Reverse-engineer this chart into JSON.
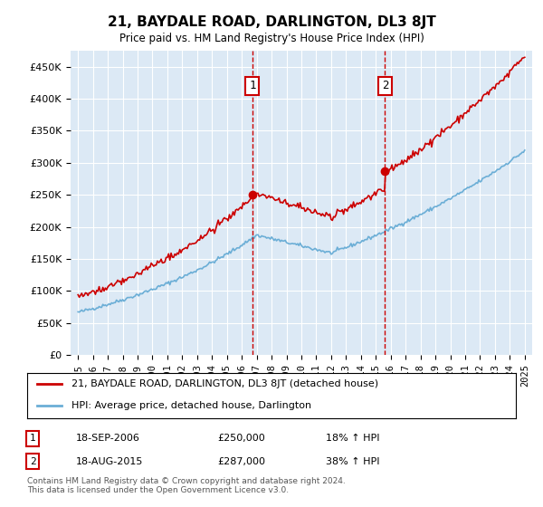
{
  "title": "21, BAYDALE ROAD, DARLINGTON, DL3 8JT",
  "subtitle": "Price paid vs. HM Land Registry's House Price Index (HPI)",
  "background_color": "#dce9f5",
  "plot_bg_color": "#dce9f5",
  "ylabel_ticks": [
    "£0",
    "£50K",
    "£100K",
    "£150K",
    "£200K",
    "£250K",
    "£300K",
    "£350K",
    "£400K",
    "£450K"
  ],
  "ytick_values": [
    0,
    50000,
    100000,
    150000,
    200000,
    250000,
    300000,
    350000,
    400000,
    450000
  ],
  "ylim": [
    0,
    475000
  ],
  "xlim_start": 1994.5,
  "xlim_end": 2025.5,
  "transaction1_date": 2006.71,
  "transaction1_price": 250000,
  "transaction1_label": "1",
  "transaction2_date": 2015.62,
  "transaction2_price": 287000,
  "transaction2_label": "2",
  "hpi_line_color": "#6baed6",
  "price_line_color": "#cc0000",
  "vline_color": "#cc0000",
  "legend_entries": [
    "21, BAYDALE ROAD, DARLINGTON, DL3 8JT (detached house)",
    "HPI: Average price, detached house, Darlington"
  ],
  "table_rows": [
    [
      "1",
      "18-SEP-2006",
      "£250,000",
      "18% ↑ HPI"
    ],
    [
      "2",
      "18-AUG-2015",
      "£287,000",
      "38% ↑ HPI"
    ]
  ],
  "footer": "Contains HM Land Registry data © Crown copyright and database right 2024.\nThis data is licensed under the Open Government Licence v3.0.",
  "xtick_years": [
    1995,
    1996,
    1997,
    1998,
    1999,
    2000,
    2001,
    2002,
    2003,
    2004,
    2005,
    2006,
    2007,
    2008,
    2009,
    2010,
    2011,
    2012,
    2013,
    2014,
    2015,
    2016,
    2017,
    2018,
    2019,
    2020,
    2021,
    2022,
    2023,
    2024,
    2025
  ]
}
